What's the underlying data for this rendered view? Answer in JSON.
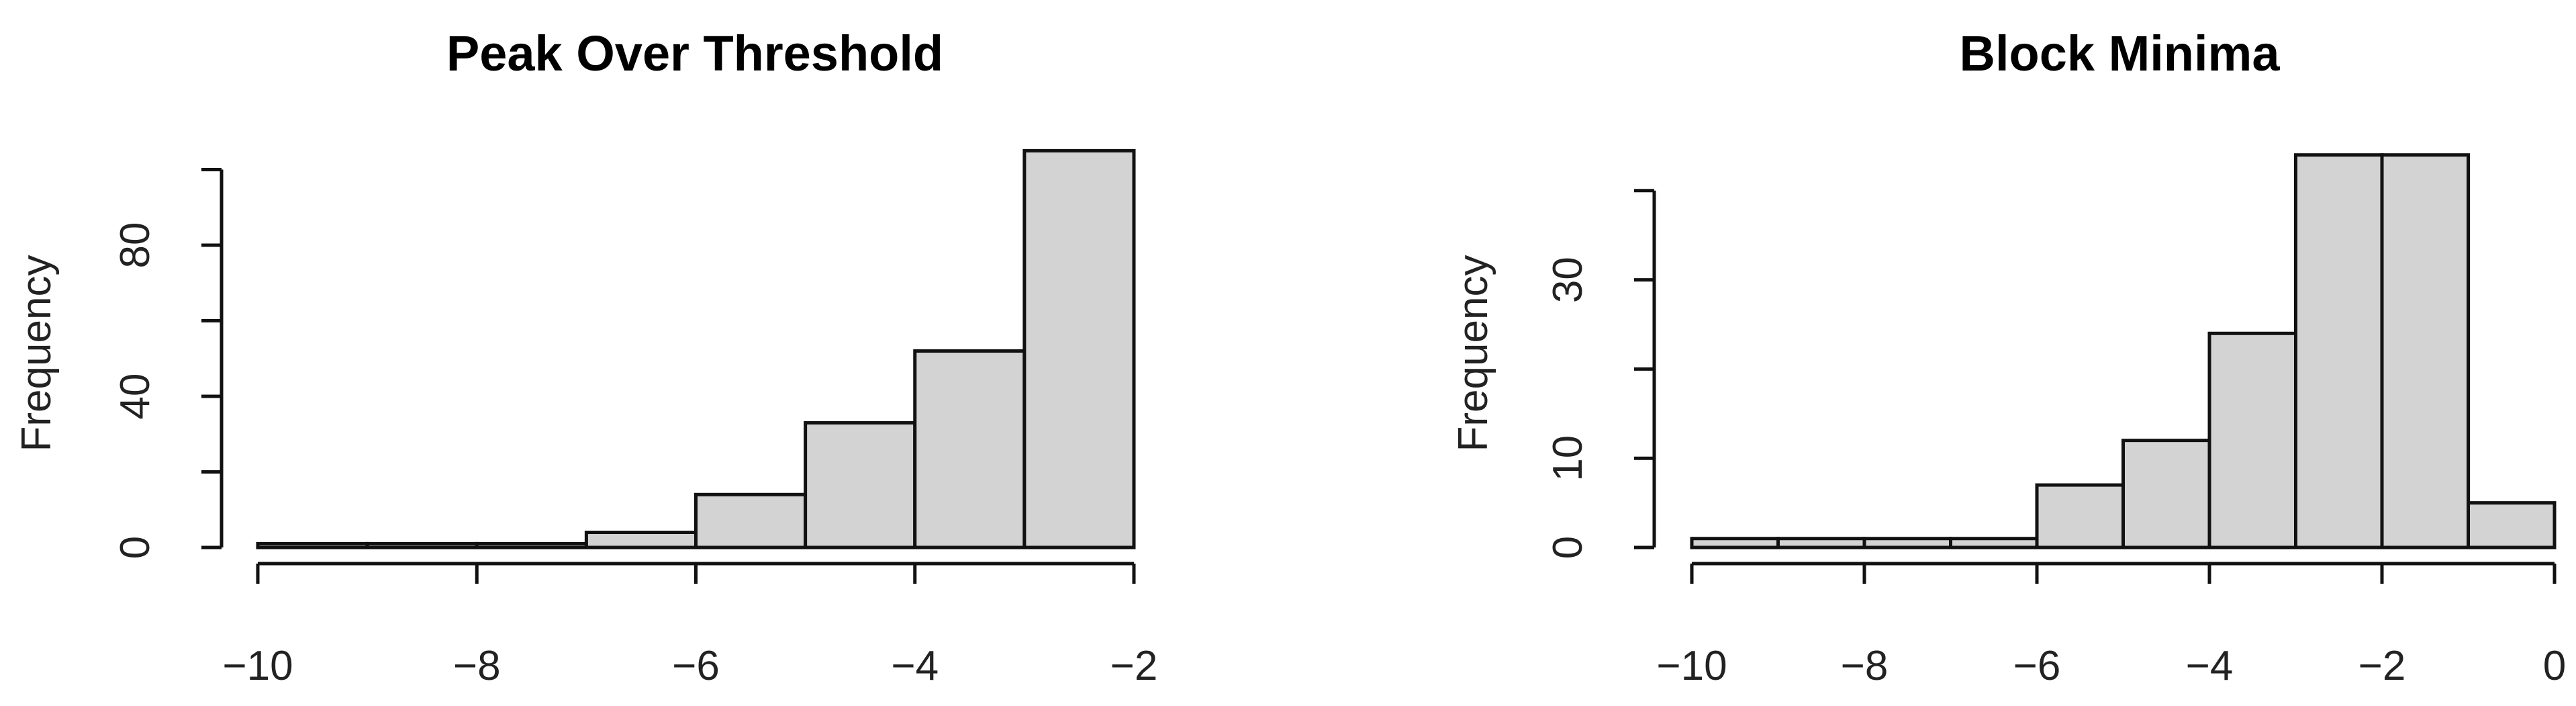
{
  "chart_data": [
    {
      "type": "bar",
      "title": "Peak Over Threshold",
      "xlabel": "",
      "ylabel": "Frequency",
      "bin_edges": [
        -10,
        -9,
        -8,
        -7,
        -6,
        -5,
        -4,
        -3,
        -2
      ],
      "values": [
        1,
        1,
        1,
        4,
        14,
        33,
        52,
        105
      ],
      "xlim": [
        -10,
        -2
      ],
      "ylim": [
        0,
        105
      ],
      "x_ticks": [
        -10,
        -8,
        -6,
        -4,
        -2
      ],
      "x_tick_labels": [
        "−10",
        "−8",
        "−6",
        "−4",
        "−2"
      ],
      "y_ticks": [
        0,
        20,
        40,
        60,
        80,
        100
      ],
      "y_tick_labels": [
        "0",
        "",
        "40",
        "",
        "80",
        ""
      ],
      "bar_color": "#d3d3d3",
      "grid": false
    },
    {
      "type": "bar",
      "title": "Block Minima",
      "xlabel": "",
      "ylabel": "Frequency",
      "bin_edges": [
        -10,
        -9,
        -8,
        -7,
        -6,
        -5,
        -4,
        -3,
        -2,
        -1,
        0
      ],
      "values": [
        1,
        1,
        1,
        1,
        7,
        12,
        24,
        44,
        44,
        5
      ],
      "xlim": [
        -10,
        0
      ],
      "ylim": [
        0,
        44
      ],
      "x_ticks": [
        -10,
        -8,
        -6,
        -4,
        -2,
        0
      ],
      "x_tick_labels": [
        "−10",
        "−8",
        "−6",
        "−4",
        "−2",
        "0"
      ],
      "y_ticks": [
        0,
        10,
        20,
        30,
        40
      ],
      "y_tick_labels": [
        "0",
        "10",
        "",
        "30",
        ""
      ],
      "bar_color": "#d3d3d3",
      "grid": false
    }
  ]
}
